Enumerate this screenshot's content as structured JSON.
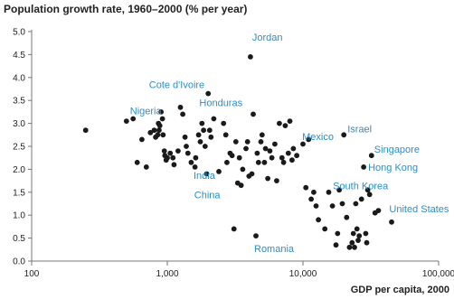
{
  "chart_data": {
    "type": "scatter",
    "title": "Population growth rate, 1960–2000 (% per year)",
    "xlabel": "GDP per capita, 2000",
    "ylabel": "",
    "x_scale": "log",
    "xlim": [
      100,
      100000
    ],
    "ylim": [
      0,
      5.0
    ],
    "x_tick_labels": [
      "100",
      "1,000",
      "10,000",
      "100,000"
    ],
    "y_tick_labels": [
      "0.0",
      "0.5",
      "1.0",
      "1.5",
      "2.0",
      "2.5",
      "3.0",
      "3.5",
      "4.0",
      "4.5",
      "5.0"
    ],
    "grid": false,
    "colors": {
      "point": "#1a1a1a",
      "annotation": "#2b8ec9",
      "axis": "#777777"
    },
    "points": [
      [
        250,
        2.85
      ],
      [
        500,
        3.05
      ],
      [
        560,
        3.1
      ],
      [
        600,
        2.15
      ],
      [
        650,
        2.65
      ],
      [
        700,
        2.05
      ],
      [
        750,
        2.8
      ],
      [
        800,
        2.85
      ],
      [
        820,
        2.7
      ],
      [
        850,
        2.75
      ],
      [
        860,
        3.0
      ],
      [
        870,
        2.85
      ],
      [
        880,
        2.95
      ],
      [
        900,
        3.25
      ],
      [
        920,
        3.1
      ],
      [
        930,
        2.75
      ],
      [
        950,
        2.4
      ],
      [
        960,
        2.3
      ],
      [
        980,
        2.2
      ],
      [
        1000,
        2.25
      ],
      [
        1050,
        2.35
      ],
      [
        1100,
        2.25
      ],
      [
        1120,
        2.1
      ],
      [
        1200,
        2.4
      ],
      [
        1250,
        3.35
      ],
      [
        1300,
        3.2
      ],
      [
        1350,
        2.7
      ],
      [
        1380,
        2.5
      ],
      [
        1420,
        2.35
      ],
      [
        1500,
        2.15
      ],
      [
        1600,
        2.05
      ],
      [
        1620,
        2.25
      ],
      [
        1700,
        2.75
      ],
      [
        1750,
        2.6
      ],
      [
        1800,
        3.0
      ],
      [
        1850,
        2.85
      ],
      [
        1900,
        2.5
      ],
      [
        1950,
        1.9
      ],
      [
        2000,
        3.65
      ],
      [
        2050,
        2.85
      ],
      [
        2100,
        2.7
      ],
      [
        2200,
        3.1
      ],
      [
        2400,
        1.95
      ],
      [
        2600,
        3.0
      ],
      [
        2700,
        2.75
      ],
      [
        2750,
        2.15
      ],
      [
        2900,
        2.35
      ],
      [
        3000,
        2.3
      ],
      [
        3100,
        0.7
      ],
      [
        3200,
        2.6
      ],
      [
        3300,
        1.7
      ],
      [
        3400,
        2.25
      ],
      [
        3500,
        1.65
      ],
      [
        3600,
        2.0
      ],
      [
        3800,
        2.45
      ],
      [
        3900,
        2.6
      ],
      [
        4000,
        1.85
      ],
      [
        4100,
        4.45
      ],
      [
        4200,
        1.9
      ],
      [
        4300,
        3.2
      ],
      [
        4500,
        0.55
      ],
      [
        4600,
        2.35
      ],
      [
        4700,
        2.15
      ],
      [
        4900,
        2.6
      ],
      [
        5000,
        2.75
      ],
      [
        5200,
        2.15
      ],
      [
        5300,
        2.45
      ],
      [
        5500,
        1.8
      ],
      [
        5700,
        2.4
      ],
      [
        5900,
        2.25
      ],
      [
        6200,
        2.55
      ],
      [
        6400,
        1.75
      ],
      [
        6700,
        3.0
      ],
      [
        7000,
        2.25
      ],
      [
        7200,
        2.15
      ],
      [
        7400,
        2.95
      ],
      [
        7800,
        2.35
      ],
      [
        8000,
        3.05
      ],
      [
        8300,
        2.2
      ],
      [
        8500,
        2.45
      ],
      [
        9000,
        2.3
      ],
      [
        10000,
        2.55
      ],
      [
        10500,
        1.6
      ],
      [
        11000,
        2.65
      ],
      [
        11500,
        1.35
      ],
      [
        12000,
        1.5
      ],
      [
        12500,
        1.2
      ],
      [
        13000,
        0.9
      ],
      [
        14500,
        0.7
      ],
      [
        15500,
        1.5
      ],
      [
        16500,
        1.2
      ],
      [
        17500,
        0.35
      ],
      [
        18000,
        0.6
      ],
      [
        18500,
        1.55
      ],
      [
        19500,
        1.25
      ],
      [
        20000,
        2.75
      ],
      [
        21000,
        0.95
      ],
      [
        22000,
        0.3
      ],
      [
        23000,
        0.4
      ],
      [
        23500,
        0.6
      ],
      [
        24000,
        0.3
      ],
      [
        24500,
        1.25
      ],
      [
        25000,
        0.7
      ],
      [
        25500,
        0.45
      ],
      [
        26000,
        0.55
      ],
      [
        27000,
        1.35
      ],
      [
        28000,
        2.05
      ],
      [
        29000,
        0.6
      ],
      [
        29500,
        0.4
      ],
      [
        30000,
        1.55
      ],
      [
        31000,
        1.45
      ],
      [
        32000,
        2.3
      ],
      [
        34000,
        1.05
      ],
      [
        36000,
        1.1
      ],
      [
        45000,
        0.85
      ]
    ],
    "annotations": [
      {
        "label": "Jordan",
        "x": 4100,
        "y": 4.45
      },
      {
        "label": "Cote d'Ivoire",
        "x": 2000,
        "y": 3.65
      },
      {
        "label": "Honduras",
        "x": 2200,
        "y": 3.1
      },
      {
        "label": "Nigeria",
        "x": 860,
        "y": 3.0
      },
      {
        "label": "Mexico",
        "x": 9000,
        "y": 2.3
      },
      {
        "label": "Israel",
        "x": 20000,
        "y": 2.75
      },
      {
        "label": "Singapore",
        "x": 32000,
        "y": 2.3
      },
      {
        "label": "Hong Kong",
        "x": 28000,
        "y": 2.05
      },
      {
        "label": "South Korea",
        "x": 18500,
        "y": 1.55
      },
      {
        "label": "United States",
        "x": 36000,
        "y": 1.1
      },
      {
        "label": "India",
        "x": 2400,
        "y": 1.95
      },
      {
        "label": "China",
        "x": 3300,
        "y": 1.7
      },
      {
        "label": "Romania",
        "x": 4500,
        "y": 0.55
      }
    ]
  }
}
